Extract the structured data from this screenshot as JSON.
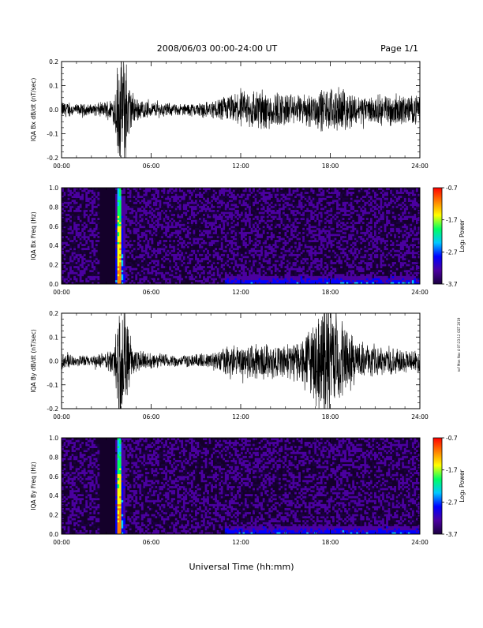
{
  "header": {
    "title": "2008/06/03  00:00-24:00 UT",
    "page": "Page 1/1"
  },
  "footer": {
    "xlabel": "Universal Time (hh:mm)",
    "side_note": "ncf Mon Nov 4 07:23:12 GST 2019"
  },
  "colors": {
    "trace": "#000000",
    "spectrogram_background": "#14002a",
    "colorbar_stops": [
      "#1a0040",
      "#4b00a0",
      "#0000ff",
      "#00c8ff",
      "#00ff60",
      "#ffff00",
      "#ff8000",
      "#ff0000"
    ]
  },
  "chart_data": [
    {
      "type": "line",
      "name": "bx-trace",
      "ylabel": "IQA Bx dB/dt (nT/sec)",
      "ylim": [
        -0.2,
        0.2
      ],
      "yticks": [
        -0.2,
        -0.1,
        0.0,
        0.1,
        0.2
      ],
      "ytick_labels": [
        "-0.2",
        "-0.1",
        "0.0",
        "0.1",
        "0.2"
      ],
      "xlim": [
        "00:00",
        "24:00"
      ],
      "xtick_labels": [
        "00:00",
        "06:00",
        "12:00",
        "18:00",
        "24:00"
      ],
      "envelope": {
        "time_h": [
          0,
          1,
          2,
          3,
          3.5,
          3.8,
          4.0,
          4.3,
          4.6,
          5,
          6,
          8,
          10,
          11,
          12,
          13,
          14,
          15,
          16,
          17,
          18,
          19,
          20,
          21,
          22,
          23,
          24
        ],
        "amplitude": [
          0.03,
          0.02,
          0.02,
          0.03,
          0.05,
          0.2,
          0.2,
          0.2,
          0.08,
          0.04,
          0.03,
          0.02,
          0.03,
          0.05,
          0.06,
          0.08,
          0.07,
          0.06,
          0.05,
          0.07,
          0.08,
          0.07,
          0.05,
          0.05,
          0.06,
          0.05,
          0.05
        ]
      }
    },
    {
      "type": "heatmap",
      "name": "bx-spectrogram",
      "ylabel": "IQA Bx Freq (Hz)",
      "ylim": [
        0.0,
        1.0
      ],
      "yticks": [
        0.0,
        0.2,
        0.4,
        0.6,
        0.8,
        1.0
      ],
      "ytick_labels": [
        "0.0",
        "0.2",
        "0.4",
        "0.6",
        "0.8",
        "1.0"
      ],
      "xlim": [
        "00:00",
        "24:00"
      ],
      "xtick_labels": [
        "00:00",
        "06:00",
        "12:00",
        "18:00",
        "24:00"
      ],
      "colorbar": {
        "label": "Log₂ Power",
        "range": [
          -3.7,
          -0.7
        ],
        "ticks": [
          -3.7,
          -2.7,
          -1.7,
          -0.7
        ],
        "tick_labels": [
          "-3.7",
          "-2.7",
          "-1.7",
          "-0.7"
        ]
      },
      "features": {
        "burst_time_h": 3.9,
        "broadband_time_range_h": [
          3.6,
          4.3
        ],
        "low_freq_enhancement_time_range_h": [
          11,
          24
        ]
      }
    },
    {
      "type": "line",
      "name": "by-trace",
      "ylabel": "IQA By dB/dt (nT/sec)",
      "ylim": [
        -0.2,
        0.2
      ],
      "yticks": [
        -0.2,
        -0.1,
        0.0,
        0.1,
        0.2
      ],
      "ytick_labels": [
        "-0.2",
        "-0.1",
        "0.0",
        "0.1",
        "0.2"
      ],
      "xlim": [
        "00:00",
        "24:00"
      ],
      "xtick_labels": [
        "00:00",
        "06:00",
        "12:00",
        "18:00",
        "24:00"
      ],
      "envelope": {
        "time_h": [
          0,
          1,
          2,
          3,
          3.5,
          3.8,
          4.0,
          4.3,
          4.6,
          5,
          6,
          8,
          10,
          11,
          12,
          13,
          14,
          15,
          16,
          16.5,
          17,
          17.5,
          18,
          18.5,
          19,
          20,
          21,
          22,
          23,
          24
        ],
        "amplitude": [
          0.03,
          0.02,
          0.02,
          0.03,
          0.06,
          0.2,
          0.2,
          0.2,
          0.1,
          0.04,
          0.03,
          0.02,
          0.03,
          0.05,
          0.06,
          0.07,
          0.06,
          0.06,
          0.08,
          0.12,
          0.15,
          0.2,
          0.2,
          0.18,
          0.12,
          0.07,
          0.05,
          0.05,
          0.04,
          0.04
        ]
      }
    },
    {
      "type": "heatmap",
      "name": "by-spectrogram",
      "ylabel": "IQA By Freq (Hz)",
      "ylim": [
        0.0,
        1.0
      ],
      "yticks": [
        0.0,
        0.2,
        0.4,
        0.6,
        0.8,
        1.0
      ],
      "ytick_labels": [
        "0.0",
        "0.2",
        "0.4",
        "0.6",
        "0.8",
        "1.0"
      ],
      "xlim": [
        "00:00",
        "24:00"
      ],
      "xtick_labels": [
        "00:00",
        "06:00",
        "12:00",
        "18:00",
        "24:00"
      ],
      "colorbar": {
        "label": "Log₂ Power",
        "range": [
          -3.7,
          -0.7
        ],
        "ticks": [
          -3.7,
          -2.7,
          -1.7,
          -0.7
        ],
        "tick_labels": [
          "-3.7",
          "-2.7",
          "-1.7",
          "-0.7"
        ]
      },
      "features": {
        "burst_time_h": 3.9,
        "broadband_time_range_h": [
          3.6,
          4.3
        ],
        "low_freq_enhancement_time_range_h": [
          11,
          24
        ]
      }
    }
  ]
}
